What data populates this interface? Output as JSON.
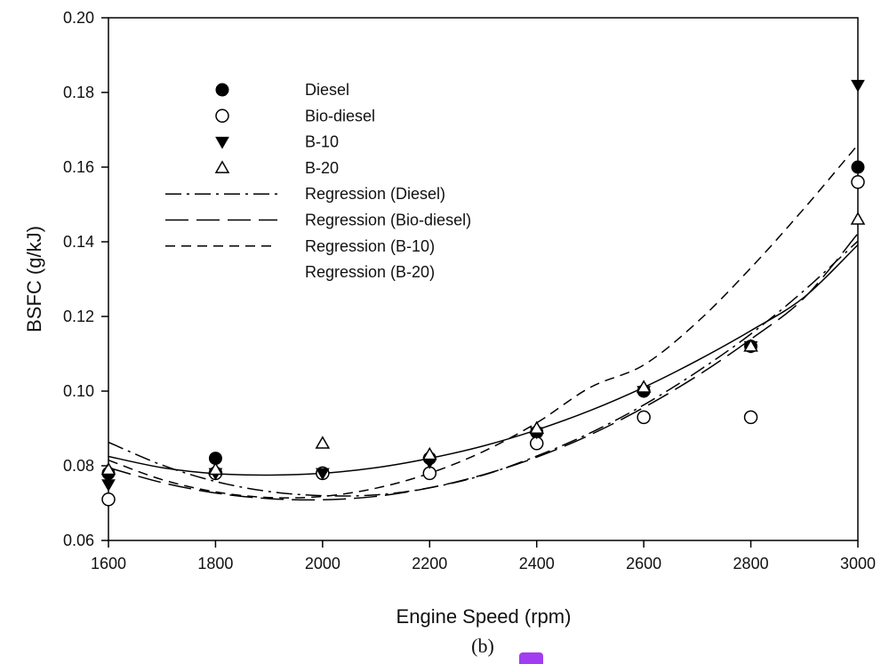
{
  "chart_data": {
    "type": "scatter",
    "caption": "(b)",
    "xlabel": "Engine Speed (rpm)",
    "ylabel": "BSFC (g/kJ)",
    "xlim": [
      1600,
      3000
    ],
    "ylim": [
      0.06,
      0.2
    ],
    "x_ticks": [
      "1600",
      "1800",
      "2000",
      "2200",
      "2400",
      "2600",
      "2800",
      "3000"
    ],
    "y_ticks": [
      "0.06",
      "0.08",
      "0.10",
      "0.12",
      "0.14",
      "0.16",
      "0.18",
      "0.20"
    ],
    "x": [
      1600,
      1800,
      2000,
      2200,
      2400,
      2600,
      2800,
      3000
    ],
    "series": [
      {
        "name": "Diesel",
        "marker": "filled-circle",
        "values": [
          0.078,
          0.082,
          0.078,
          0.082,
          0.089,
          0.1,
          0.112,
          0.16
        ]
      },
      {
        "name": "Bio-diesel",
        "marker": "open-circle",
        "values": [
          0.071,
          0.078,
          0.078,
          0.078,
          0.086,
          0.093,
          0.093,
          0.156
        ]
      },
      {
        "name": "B-10",
        "marker": "filled-triangle-down",
        "values": [
          0.075,
          0.078,
          0.078,
          0.081,
          0.089,
          0.1,
          0.112,
          0.182
        ]
      },
      {
        "name": "B-20",
        "marker": "open-triangle-up",
        "values": [
          0.079,
          0.079,
          0.086,
          0.083,
          0.09,
          0.101,
          0.112,
          0.146
        ]
      }
    ],
    "regressions": [
      {
        "name": "Regression (Diesel)",
        "dash": "dash-dot",
        "x": [
          1600,
          1700,
          1800,
          1900,
          2000,
          2100,
          2200,
          2300,
          2400,
          2500,
          2600,
          2700,
          2800,
          2900,
          3000
        ],
        "values": [
          0.0863,
          0.0802,
          0.0758,
          0.0731,
          0.072,
          0.0722,
          0.0741,
          0.0775,
          0.0826,
          0.0888,
          0.0963,
          0.1052,
          0.1153,
          0.127,
          0.1402
        ]
      },
      {
        "name": "Regression (Bio-diesel)",
        "dash": "long-dash",
        "x": [
          1600,
          1700,
          1800,
          1900,
          2000,
          2100,
          2200,
          2300,
          2400,
          2500,
          2600,
          2700,
          2800,
          2900,
          3000
        ],
        "values": [
          0.0795,
          0.0755,
          0.0727,
          0.0712,
          0.0709,
          0.0718,
          0.0741,
          0.0776,
          0.0823,
          0.0883,
          0.0956,
          0.1041,
          0.1139,
          0.125,
          0.1422
        ]
      },
      {
        "name": "Regression (B-10)",
        "dash": "short-dash",
        "x": [
          1600,
          1700,
          1800,
          1900,
          2000,
          2100,
          2200,
          2300,
          2400,
          2500,
          2600,
          2700,
          2800,
          2900,
          3000
        ],
        "values": [
          0.0815,
          0.0763,
          0.073,
          0.0715,
          0.0718,
          0.074,
          0.078,
          0.0838,
          0.0915,
          0.101,
          0.107,
          0.1185,
          0.133,
          0.149,
          0.166
        ]
      },
      {
        "name": "Regression (B-20)",
        "dash": "solid",
        "x": [
          1600,
          1700,
          1800,
          1900,
          2000,
          2100,
          2200,
          2300,
          2400,
          2500,
          2600,
          2700,
          2800,
          2900,
          3000
        ],
        "values": [
          0.0825,
          0.0795,
          0.0779,
          0.0775,
          0.078,
          0.0795,
          0.082,
          0.0853,
          0.0896,
          0.0948,
          0.101,
          0.1082,
          0.1162,
          0.1252,
          0.1392
        ]
      }
    ],
    "legend_position": "top-left",
    "grid": false
  }
}
